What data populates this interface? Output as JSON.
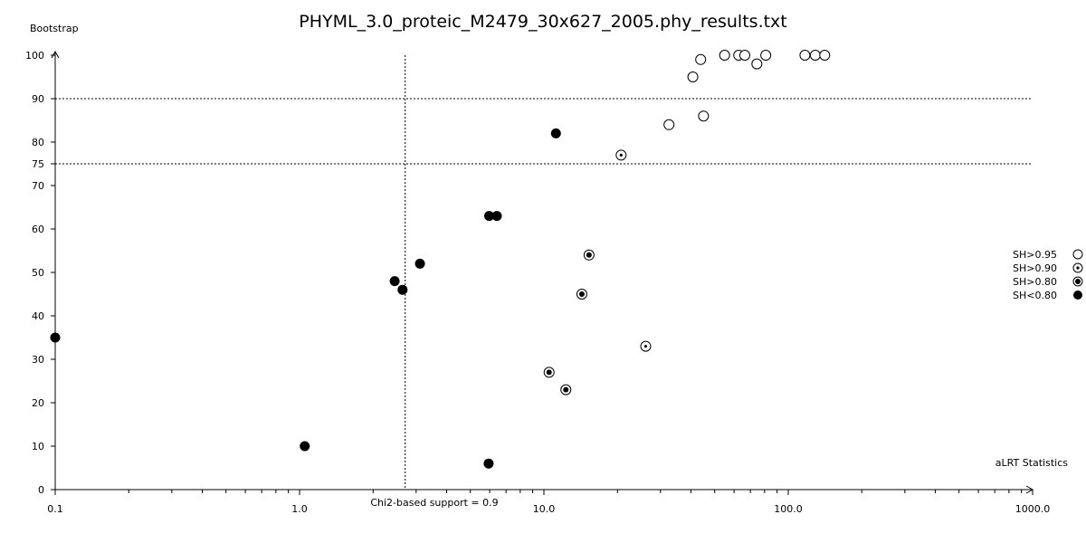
{
  "chart_data": {
    "type": "scatter",
    "title": "PHYML_3.0_proteic_M2479_30x627_2005.phy_results.txt",
    "xlabel": "aLRT Statistics",
    "ylabel": "Bootstrap",
    "x_scale": "log",
    "xlim": [
      0.1,
      1000.0
    ],
    "ylim": [
      0,
      100
    ],
    "x_tick_labels": [
      "0.1",
      "1.0",
      "10.0",
      "100.0",
      "1000.0"
    ],
    "y_tick_labels": [
      "0",
      "10",
      "20",
      "30",
      "40",
      "50",
      "60",
      "70",
      "75",
      "80",
      "90",
      "100"
    ],
    "reference_lines": {
      "vertical_label": "Chi2-based support = 0.9",
      "vertical_x": 2.706,
      "horizontal_y": [
        75,
        90
      ]
    },
    "grid": false,
    "legend_position": "right",
    "series": [
      {
        "name": "SH>0.95",
        "marker": "open-circle",
        "points": [
          {
            "x": 40.7,
            "y": 95
          },
          {
            "x": 43.8,
            "y": 99
          },
          {
            "x": 54.9,
            "y": 100
          },
          {
            "x": 62.7,
            "y": 100
          },
          {
            "x": 66.4,
            "y": 100
          },
          {
            "x": 74.4,
            "y": 98
          },
          {
            "x": 80.9,
            "y": 100
          },
          {
            "x": 117,
            "y": 100
          },
          {
            "x": 129,
            "y": 100
          },
          {
            "x": 141,
            "y": 100
          },
          {
            "x": 32.5,
            "y": 84
          },
          {
            "x": 45.0,
            "y": 86
          }
        ]
      },
      {
        "name": "SH>0.90",
        "marker": "dot-circle",
        "points": [
          {
            "x": 20.7,
            "y": 77
          },
          {
            "x": 26.1,
            "y": 33
          }
        ]
      },
      {
        "name": "SH>0.80",
        "marker": "bullseye",
        "points": [
          {
            "x": 15.3,
            "y": 54
          },
          {
            "x": 14.3,
            "y": 45
          },
          {
            "x": 10.5,
            "y": 27
          },
          {
            "x": 12.3,
            "y": 23
          }
        ]
      },
      {
        "name": "SH<0.80",
        "marker": "filled-circle",
        "points": [
          {
            "x": 0.1,
            "y": 35
          },
          {
            "x": 1.05,
            "y": 10
          },
          {
            "x": 2.45,
            "y": 48
          },
          {
            "x": 2.64,
            "y": 46
          },
          {
            "x": 3.11,
            "y": 52
          },
          {
            "x": 5.97,
            "y": 63
          },
          {
            "x": 6.42,
            "y": 63
          },
          {
            "x": 5.94,
            "y": 6
          },
          {
            "x": 11.2,
            "y": 82
          }
        ]
      }
    ]
  }
}
